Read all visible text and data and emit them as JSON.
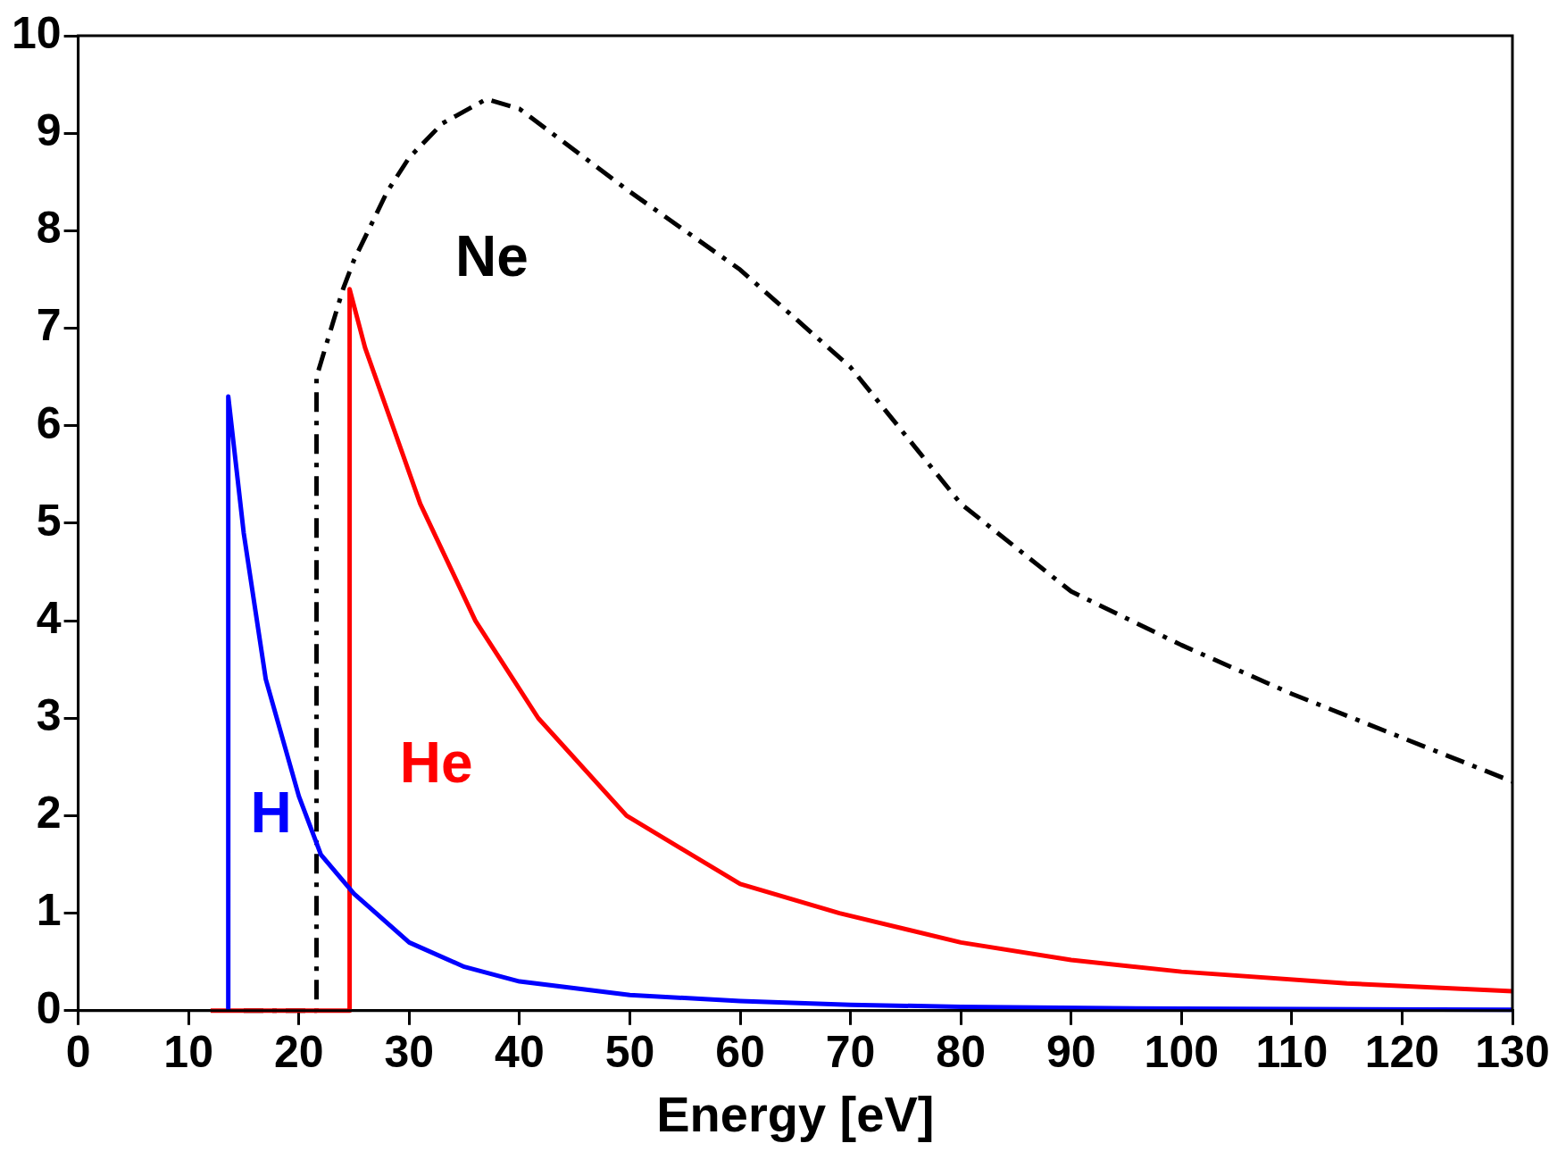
{
  "chart_data": {
    "type": "line",
    "xlabel": "Energy [eV]",
    "xlim": [
      0,
      130
    ],
    "xticks": [
      0,
      10,
      20,
      30,
      40,
      50,
      60,
      70,
      80,
      90,
      100,
      110,
      120,
      130
    ],
    "ylim": [
      0,
      10
    ],
    "yticks": [
      0,
      1,
      2,
      3,
      4,
      5,
      6,
      7,
      8,
      9,
      10
    ],
    "grid": false,
    "legend": false,
    "marker": "none",
    "series": [
      {
        "name": "H",
        "color": "#0000ff",
        "line_style": "solid",
        "x": [
          13.6,
          13.6,
          15,
          17,
          20,
          22,
          25,
          30,
          35,
          40,
          50,
          60,
          70,
          80,
          100,
          130
        ],
        "values": [
          0,
          6.3,
          4.9,
          3.4,
          2.2,
          1.6,
          1.2,
          0.7,
          0.45,
          0.3,
          0.16,
          0.1,
          0.06,
          0.04,
          0.02,
          0.01
        ]
      },
      {
        "name": "He",
        "color": "#ff0000",
        "line_style": "solid",
        "x": [
          12,
          24.6,
          24.6,
          26,
          28.5,
          31,
          36,
          41.7,
          49.7,
          60,
          69,
          80,
          90,
          100,
          115,
          130
        ],
        "values": [
          0,
          0,
          7.4,
          6.8,
          6.0,
          5.2,
          4.0,
          3.0,
          2.0,
          1.3,
          1.0,
          0.7,
          0.52,
          0.4,
          0.28,
          0.2
        ]
      },
      {
        "name": "Ne",
        "color": "#000000",
        "line_style": "dashed",
        "x": [
          15,
          21.6,
          21.6,
          24,
          25,
          28,
          30,
          33,
          37,
          40,
          50,
          60,
          70,
          80,
          90,
          100,
          110,
          120,
          130
        ],
        "values": [
          0,
          0,
          6.5,
          7.4,
          7.7,
          8.4,
          8.75,
          9.1,
          9.35,
          9.25,
          8.4,
          7.6,
          6.6,
          5.2,
          4.3,
          3.75,
          3.25,
          2.8,
          2.35
        ]
      }
    ]
  }
}
